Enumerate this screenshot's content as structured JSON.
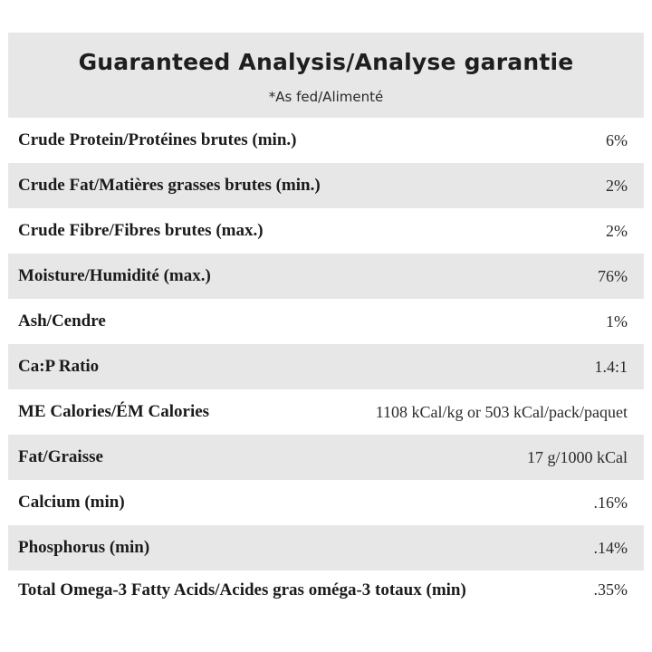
{
  "header": {
    "title": "Guaranteed Analysis/Analyse garantie",
    "subtitle": "*As fed/Alimenté"
  },
  "rows": [
    {
      "label": "Crude Protein/Protéines brutes (min.)",
      "value": "6%"
    },
    {
      "label": "Crude Fat/Matières grasses brutes (min.)",
      "value": "2%"
    },
    {
      "label": "Crude Fibre/Fibres brutes (max.)",
      "value": "2%"
    },
    {
      "label": "Moisture/Humidité (max.)",
      "value": "76%"
    },
    {
      "label": "Ash/Cendre",
      "value": "1%"
    },
    {
      "label": "Ca:P Ratio",
      "value": "1.4:1"
    },
    {
      "label": "ME Calories/ÉM Calories",
      "value": "1108 kCal/kg or 503 kCal/pack/paquet"
    },
    {
      "label": "Fat/Graisse",
      "value": "17 g/1000 kCal"
    },
    {
      "label": "Calcium (min)",
      "value": ".16%"
    },
    {
      "label": "Phosphorus (min)",
      "value": ".14%"
    },
    {
      "label": "Total Omega-3 Fatty Acids/Acides gras oméga-3 totaux (min)",
      "value": ".35%"
    }
  ],
  "colors": {
    "shade": "#e7e7e7",
    "text": "#1b1b1b"
  }
}
